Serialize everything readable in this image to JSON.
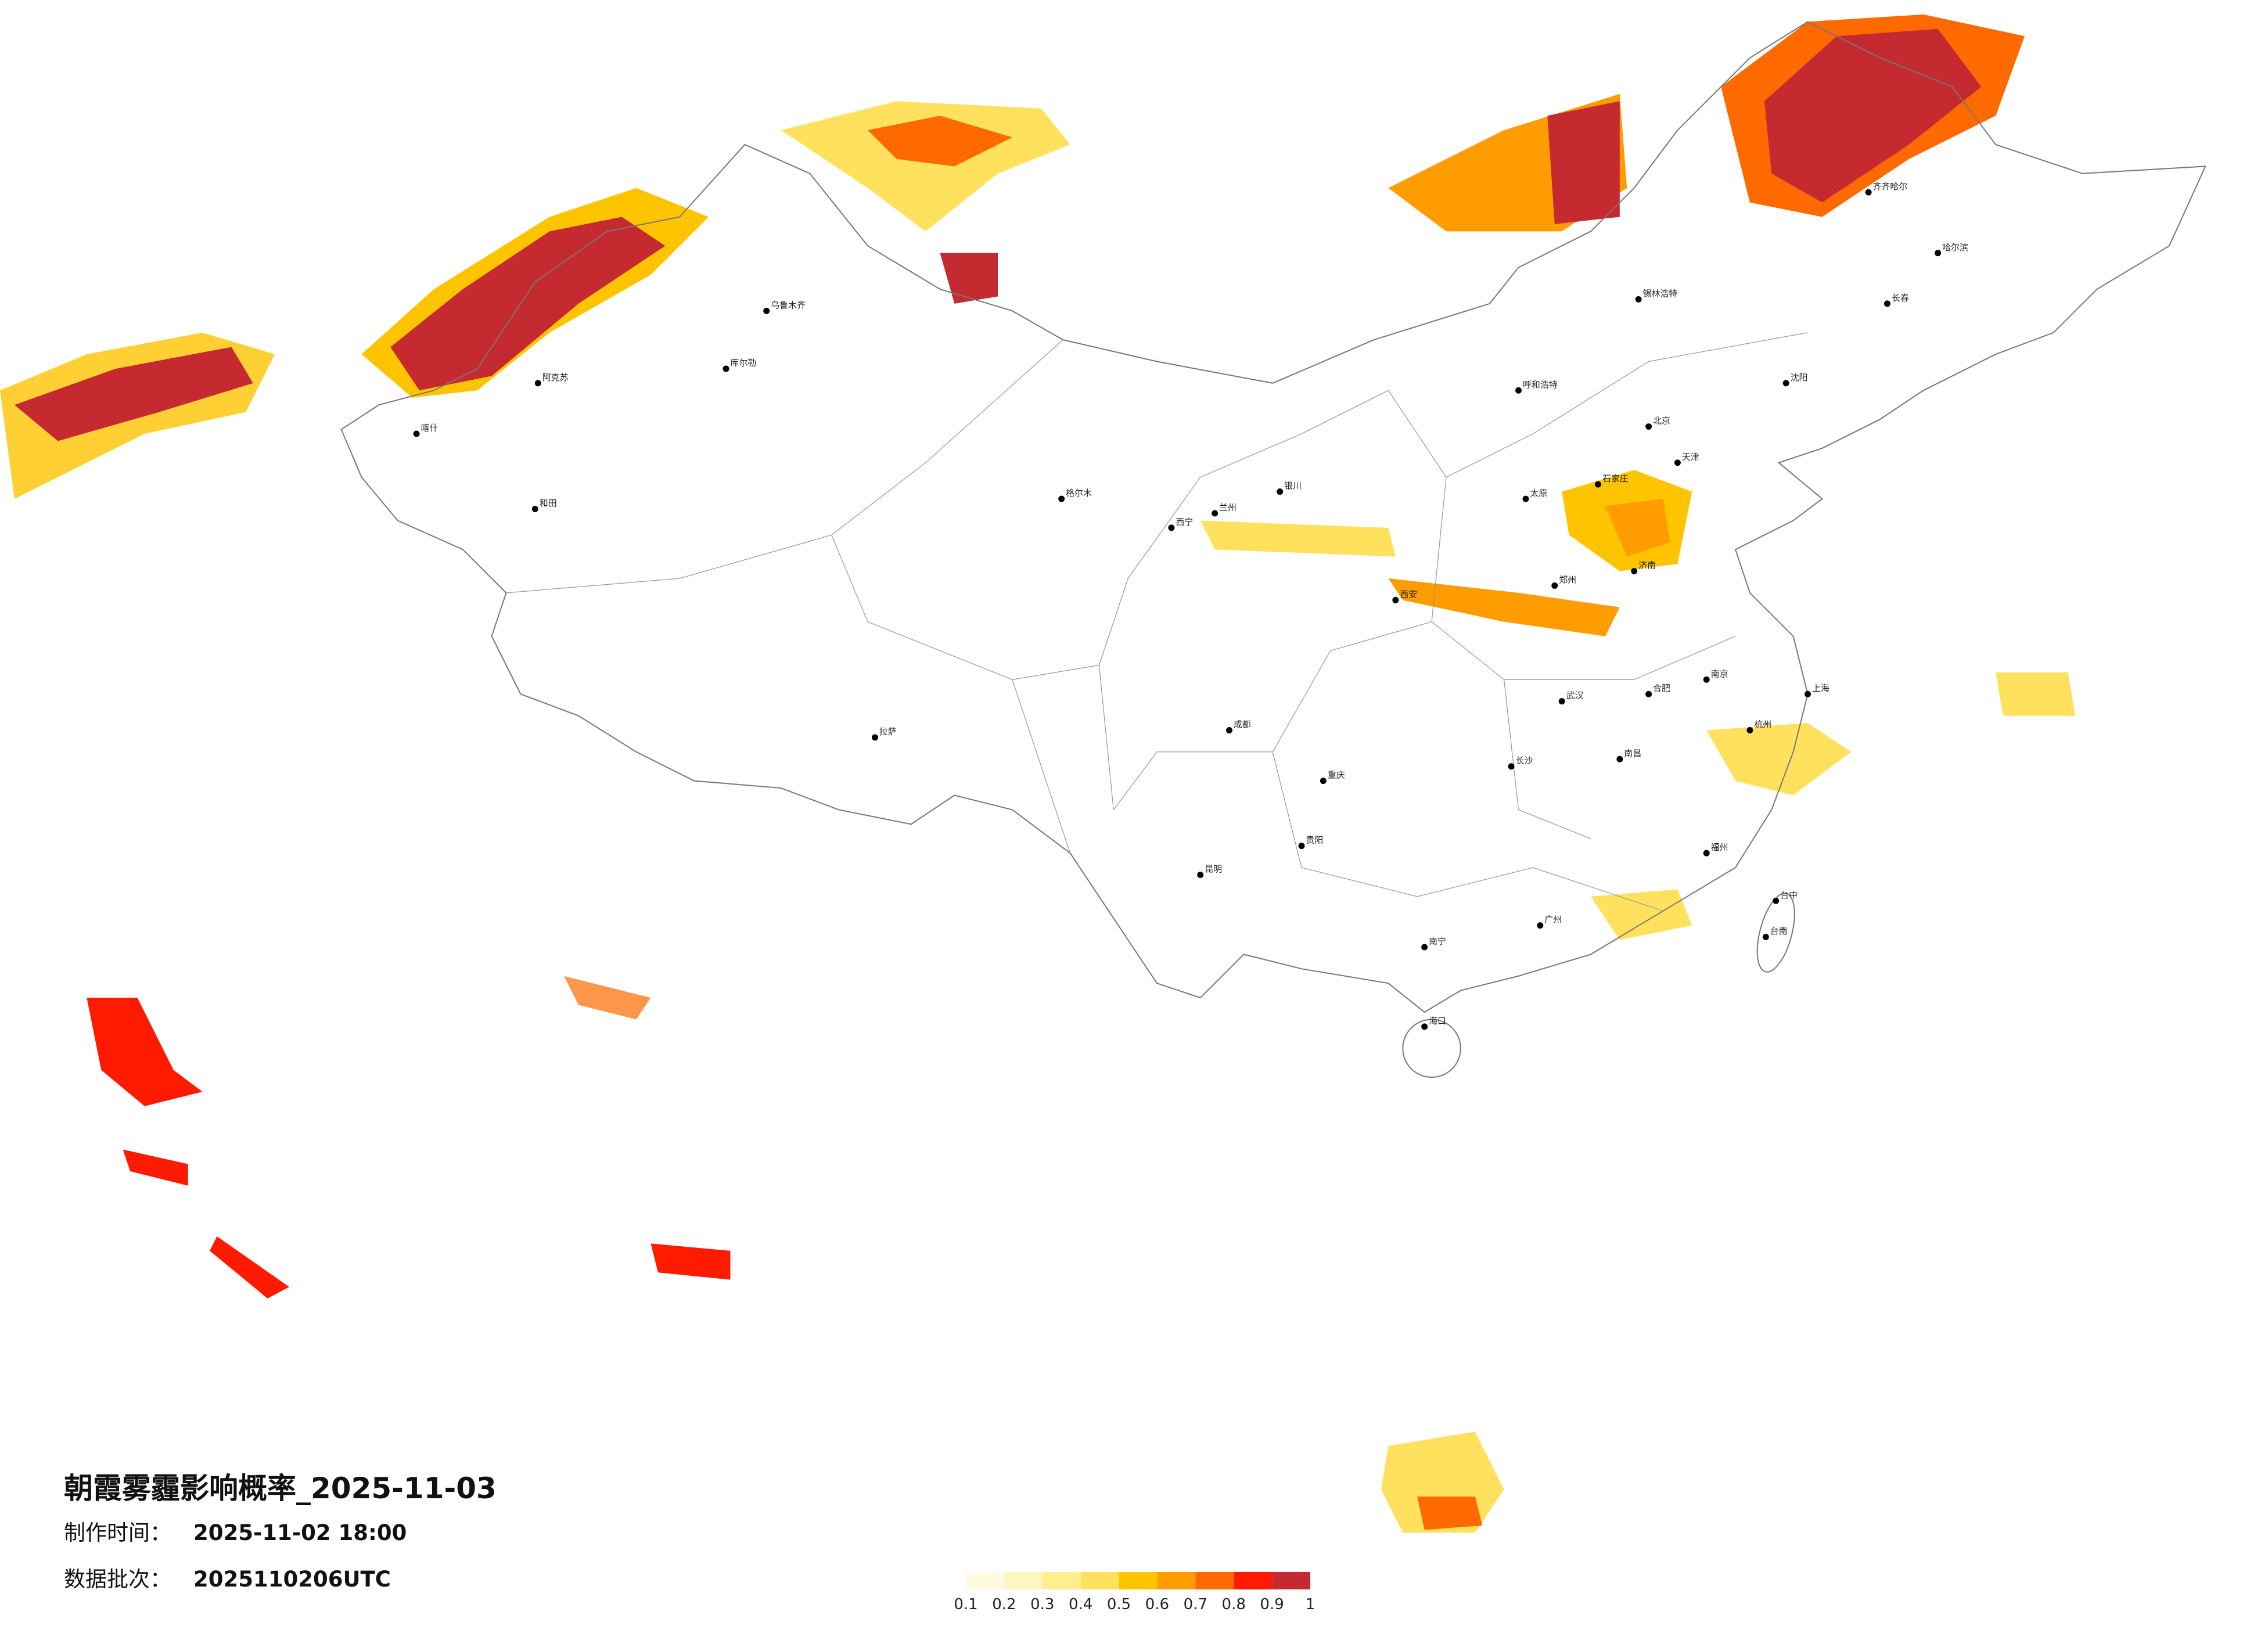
{
  "title": "朝霞雾霾影响概率_2025-11-03",
  "made_label": "制作时间：",
  "made_time": "2025-11-02 18:00",
  "batch_label": "数据批次：",
  "batch": "2025110206UTC",
  "legend": {
    "ticks": [
      0.1,
      0.2,
      0.3,
      0.4,
      0.5,
      0.6,
      0.7,
      0.8,
      0.9,
      1
    ],
    "colors": [
      "#fffbe3",
      "#fff6c2",
      "#ffee8e",
      "#ffe15e",
      "#ffc400",
      "#ff9c00",
      "#ff6a00",
      "#ff1a00",
      "#c62a31"
    ]
  },
  "cities": [
    "北京",
    "天津",
    "石家庄",
    "太原",
    "呼和浩特",
    "沈阳",
    "长春",
    "哈尔滨",
    "济南",
    "郑州",
    "西安",
    "兰州",
    "西宁",
    "银川",
    "乌鲁木齐",
    "拉萨",
    "成都",
    "重庆",
    "贵阳",
    "昆明",
    "南宁",
    "广州",
    "海口",
    "长沙",
    "武汉",
    "南昌",
    "福州",
    "杭州",
    "上海",
    "南京",
    "合肥",
    "和田",
    "喀什",
    "阿克苏",
    "格尔木",
    "台中",
    "台南",
    "齐齐哈尔",
    "锡林浩特",
    "库尔勒"
  ]
}
